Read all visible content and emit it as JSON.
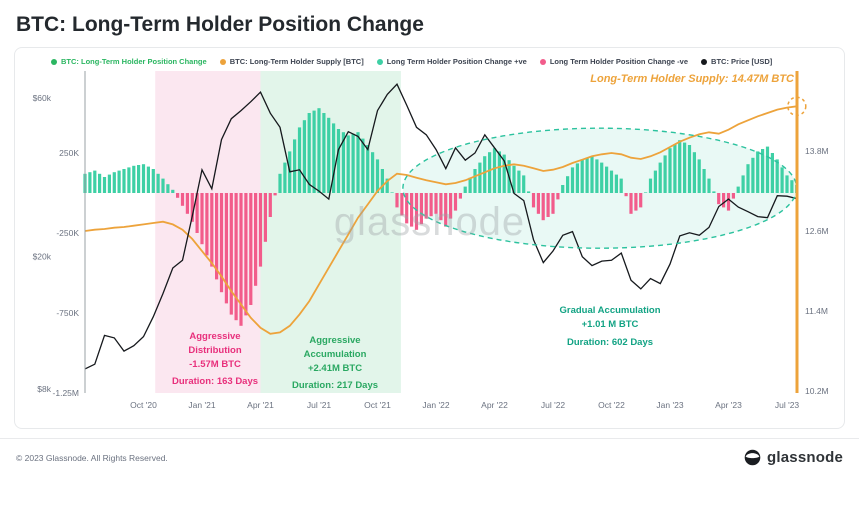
{
  "title": "BTC: Long-Term Holder Position Change",
  "watermark": "glassnode",
  "legend": {
    "items": [
      {
        "label": "BTC: Long-Term Holder Position Change",
        "dot": "#2bb661",
        "text": "#2bb661"
      },
      {
        "label": "BTC: Long-Term Holder Supply [BTC]",
        "dot": "#eda33b",
        "text": "#3d4451"
      },
      {
        "label": "Long Term Holder Position Change +ve",
        "dot": "#3ed0a5",
        "text": "#3d4451"
      },
      {
        "label": "Long Term Holder Position Change -ve",
        "dot": "#f25c8b",
        "text": "#3d4451"
      },
      {
        "label": "BTC: Price [USD]",
        "dot": "#16191d",
        "text": "#3d4451"
      }
    ]
  },
  "annotations": {
    "supply_label": "Long-Term Holder Supply: 14.47M BTC",
    "distribution": {
      "line1": "Aggressive",
      "line2": "Distribution",
      "line3": "-1.57M BTC",
      "line4": "Duration: 163 Days"
    },
    "accumulation": {
      "line1": "Aggressive",
      "line2": "Accumulation",
      "line3": "+2.41M BTC",
      "line4": "Duration: 217 Days"
    },
    "gradual": {
      "line1": "Gradual Accumulation",
      "line2": "+1.01 M BTC",
      "line3": "Duration: 602 Days"
    }
  },
  "footer": {
    "copyright": "© 2023 Glassnode. All Rights Reserved.",
    "brand": "glassnode"
  },
  "chart_data": {
    "type": "bar",
    "title": "BTC: Long-Term Holder Position Change",
    "x_start": "Jul 2020",
    "x_end": "Jul 2023",
    "points_per_month": 2,
    "series": [
      {
        "name": "Long Term Holder Position Change [BTC]",
        "type": "bar",
        "unit": "K BTC",
        "positive_color": "#3ed0a5",
        "negative_color": "#f25c8b",
        "values": [
          120,
          140,
          100,
          130,
          150,
          170,
          180,
          150,
          90,
          20,
          -80,
          -180,
          -320,
          -460,
          -620,
          -760,
          -830,
          -700,
          -460,
          -150,
          120,
          260,
          410,
          500,
          530,
          470,
          400,
          360,
          380,
          300,
          210,
          90,
          -90,
          -190,
          -230,
          -160,
          -130,
          -210,
          -110,
          40,
          150,
          230,
          280,
          240,
          170,
          110,
          -90,
          -170,
          -130,
          50,
          160,
          210,
          230,
          190,
          140,
          90,
          -130,
          -90,
          90,
          190,
          280,
          330,
          300,
          210,
          90,
          -70,
          -110,
          40,
          180,
          260,
          290,
          210,
          110,
          50
        ]
      },
      {
        "name": "BTC: Long-Term Holder Supply [BTC]",
        "type": "line",
        "unit": "M BTC",
        "color": "#eda33b",
        "values": [
          12.6,
          12.62,
          12.63,
          12.65,
          12.66,
          12.68,
          12.7,
          12.72,
          12.74,
          12.7,
          12.62,
          12.48,
          12.3,
          12.12,
          11.92,
          11.7,
          11.5,
          11.3,
          11.15,
          11.06,
          11.08,
          11.18,
          11.35,
          11.55,
          11.8,
          12.05,
          12.3,
          12.55,
          12.8,
          13.0,
          13.2,
          13.35,
          13.46,
          13.44,
          13.4,
          13.36,
          13.33,
          13.3,
          13.32,
          13.36,
          13.42,
          13.48,
          13.54,
          13.58,
          13.6,
          13.58,
          13.54,
          13.5,
          13.52,
          13.56,
          13.62,
          13.67,
          13.72,
          13.75,
          13.77,
          13.75,
          13.7,
          13.68,
          13.72,
          13.78,
          13.86,
          13.94,
          14.0,
          14.05,
          14.08,
          14.06,
          14.12,
          14.2,
          14.26,
          14.32,
          14.37,
          14.42,
          14.45,
          14.47
        ]
      },
      {
        "name": "BTC: Price [USD]",
        "type": "line",
        "unit": "USD",
        "color": "#16191d",
        "values": [
          9200,
          9500,
          11600,
          11400,
          10400,
          10800,
          11500,
          13200,
          15500,
          18500,
          19500,
          26500,
          36500,
          32000,
          45000,
          52000,
          55000,
          58500,
          62500,
          54000,
          49000,
          36000,
          36500,
          33000,
          31500,
          29800,
          42000,
          47500,
          46000,
          42000,
          55000,
          61500,
          66000,
          57000,
          49000,
          46500,
          42000,
          36800,
          42500,
          39000,
          41000,
          46500,
          42500,
          38800,
          31000,
          29500,
          22500,
          19200,
          20800,
          23200,
          23800,
          20000,
          18800,
          19400,
          19500,
          20500,
          17000,
          16000,
          17200,
          16600,
          19000,
          23100,
          23600,
          23200,
          24500,
          28300,
          29800,
          28200,
          27300,
          26400,
          26200,
          30500,
          30400,
          29900
        ]
      }
    ],
    "x_ticks": [
      {
        "label": "Oct '20",
        "m": 3
      },
      {
        "label": "Jan '21",
        "m": 6
      },
      {
        "label": "Apr '21",
        "m": 9
      },
      {
        "label": "Jul '21",
        "m": 12
      },
      {
        "label": "Oct '21",
        "m": 15
      },
      {
        "label": "Jan '22",
        "m": 18
      },
      {
        "label": "Apr '22",
        "m": 21
      },
      {
        "label": "Jul '22",
        "m": 24
      },
      {
        "label": "Oct '22",
        "m": 27
      },
      {
        "label": "Jan '23",
        "m": 30
      },
      {
        "label": "Apr '23",
        "m": 33
      },
      {
        "label": "Jul '23",
        "m": 36
      }
    ],
    "left_axis_price": [
      {
        "label": "$60k",
        "value": 60000
      },
      {
        "label": "$20k",
        "value": 20000
      },
      {
        "label": "$8k",
        "value": 8000
      }
    ],
    "left_axis_change": [
      {
        "label": "250K",
        "value": 250
      },
      {
        "label": "-250K",
        "value": -250
      },
      {
        "label": "-750K",
        "value": -750
      },
      {
        "label": "-1.25M",
        "value": -1250
      }
    ],
    "right_axis_supply": [
      {
        "label": "13.8M",
        "value": 13.8
      },
      {
        "label": "12.6M",
        "value": 12.6
      },
      {
        "label": "11.4M",
        "value": 11.4
      },
      {
        "label": "10.2M",
        "value": 10.2
      }
    ],
    "bands": [
      {
        "label": "Aggressive Distribution period",
        "color": "#fbe7f0",
        "start_m": 3.6,
        "end_m": 9.0
      },
      {
        "label": "Aggressive Accumulation period",
        "color": "#e2f5ea",
        "start_m": 9.0,
        "end_m": 16.2
      }
    ],
    "ellipse": {
      "label": "Gradual Accumulation region",
      "center_m": 26.4,
      "center_v": 30,
      "rx_m": 10.1,
      "ry_v": 375,
      "stroke": "#2cc29e"
    }
  }
}
